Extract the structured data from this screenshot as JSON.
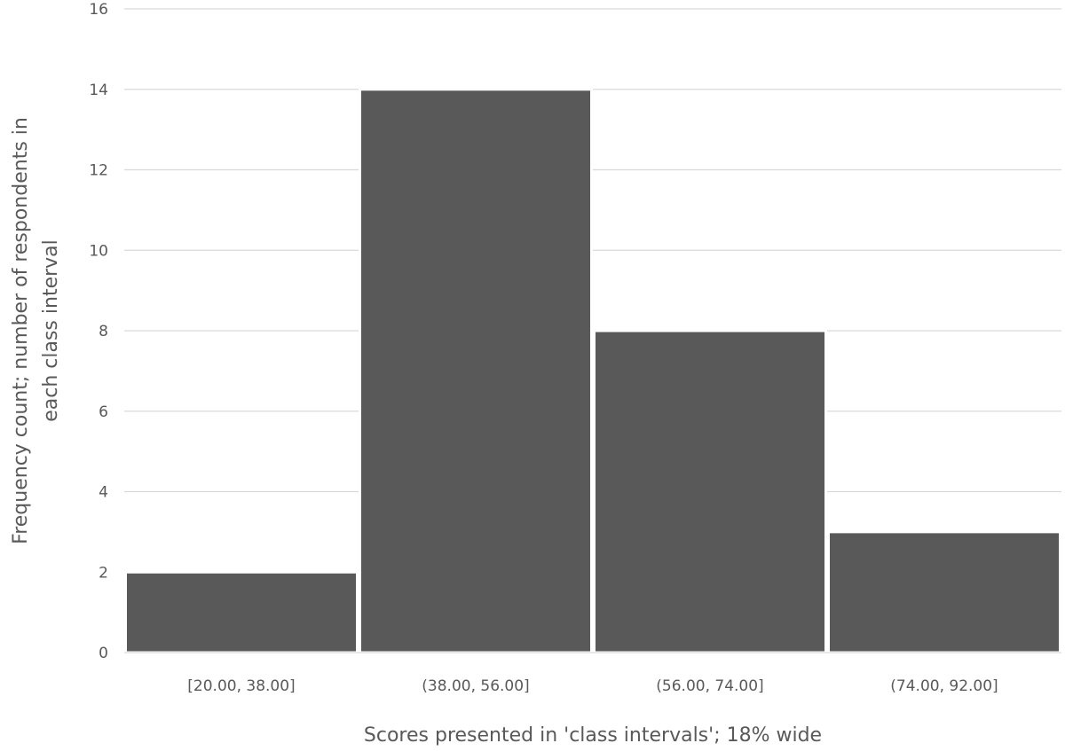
{
  "chart_data": {
    "type": "bar",
    "categories": [
      "[20.00, 38.00]",
      "(38.00, 56.00]",
      "(56.00, 74.00]",
      "(74.00, 92.00]"
    ],
    "values": [
      2,
      14,
      8,
      3
    ],
    "ylim": [
      0,
      16
    ],
    "yticks": [
      0,
      2,
      4,
      6,
      8,
      10,
      12,
      14,
      16
    ],
    "xlabel": "Scores presented in 'class intervals'; 18% wide",
    "ylabel_lines": [
      "Frequency count; number of respondents in",
      "each class interval"
    ],
    "grid": true,
    "legend": "none",
    "bar_color": "#595959",
    "gap_width": "none"
  }
}
